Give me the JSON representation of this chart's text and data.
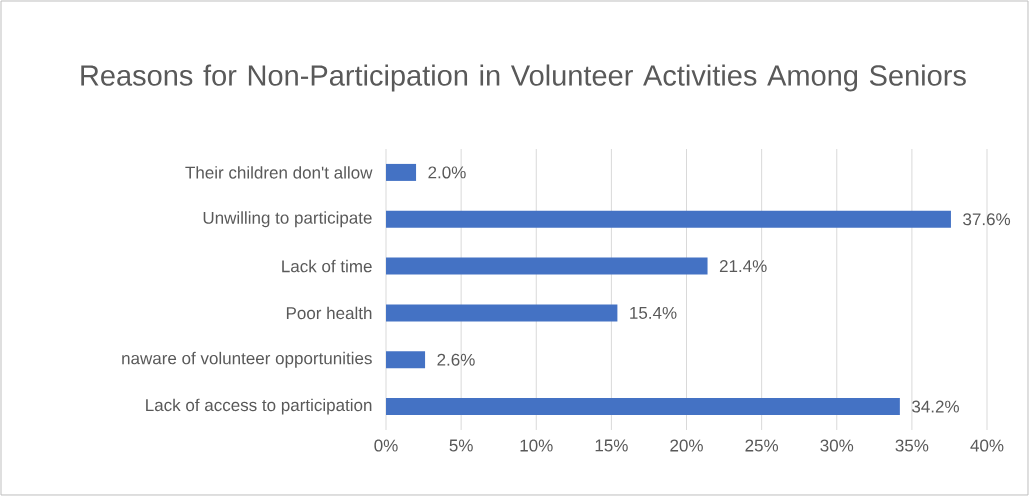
{
  "chart_data": {
    "type": "bar",
    "orientation": "horizontal",
    "title": "Reasons for Non-Participation in Volunteer Activities Among Seniors",
    "categories": [
      "Their children don't allow",
      "Unwilling to participate",
      "Lack of time",
      "Poor health",
      "naware of volunteer opportunities",
      "Lack of access to participation"
    ],
    "values": [
      2.0,
      37.6,
      21.4,
      15.4,
      2.6,
      34.2
    ],
    "value_labels": [
      "2.0%",
      "37.6%",
      "21.4%",
      "15.4%",
      "2.6%",
      "34.2%"
    ],
    "color": "#4472c4",
    "xlim": [
      0,
      40
    ],
    "xticks": [
      {
        "value": 0,
        "label": "0%"
      },
      {
        "value": 5,
        "label": "5%"
      },
      {
        "value": 10,
        "label": "10%"
      },
      {
        "value": 15,
        "label": "15%"
      },
      {
        "value": 20,
        "label": "20%"
      },
      {
        "value": 25,
        "label": "25%"
      },
      {
        "value": 30,
        "label": "30%"
      },
      {
        "value": 35,
        "label": "35%"
      },
      {
        "value": 40,
        "label": "40%"
      }
    ],
    "grid": "x"
  }
}
